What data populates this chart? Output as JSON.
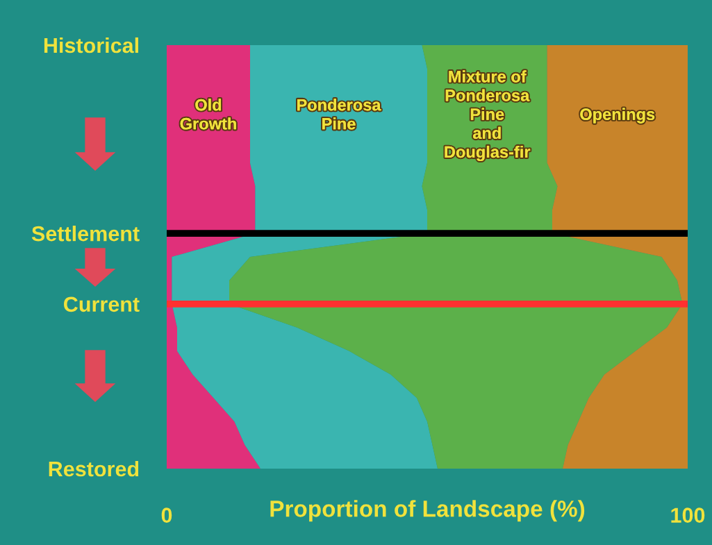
{
  "chart_data": {
    "type": "area",
    "orientation": "horizontal",
    "stacked": true,
    "xlabel": "Proportion of Landscape (%)",
    "categories": [
      "Historical",
      null,
      null,
      null,
      null,
      null,
      null,
      null,
      "Settlement",
      null,
      null,
      "Current",
      null,
      null,
      null,
      null,
      null,
      null,
      "Restored"
    ],
    "series": [
      {
        "name": "Old\nGrowth",
        "color": "#e0307a",
        "values": [
          16,
          16,
          16,
          16,
          16,
          16,
          17,
          17,
          17,
          1,
          1,
          1,
          2,
          2,
          5,
          9,
          13,
          15,
          18
        ]
      },
      {
        "name": "Ponderosa\nPine",
        "color": "#3ab5b0",
        "values": [
          33,
          34,
          34,
          34,
          34,
          34,
          32,
          33,
          33,
          15,
          11,
          11,
          23,
          33,
          38,
          39,
          37,
          36,
          34
        ]
      },
      {
        "name": "Mixture of\nPonderosa\nPine\nand\nDouglas-fir",
        "color": "#5cb04a",
        "values": [
          24,
          23,
          23,
          23,
          23,
          23,
          26,
          24,
          24,
          79,
          86,
          87,
          71,
          55,
          41,
          33,
          29,
          26,
          24
        ]
      },
      {
        "name": "Openings",
        "color": "#c8842a",
        "values": [
          27,
          27,
          27,
          27,
          27,
          27,
          25,
          26,
          26,
          5,
          2,
          1,
          4,
          10,
          16,
          19,
          21,
          23,
          24
        ]
      }
    ],
    "xlim": [
      0,
      100
    ],
    "xticks": [
      0,
      100
    ],
    "ref_lines": [
      {
        "axis": "y",
        "value": "Settlement",
        "color": "#000000"
      },
      {
        "axis": "y",
        "value": "Current",
        "color": "#ff3030"
      }
    ],
    "grid": false,
    "legend": false
  }
}
